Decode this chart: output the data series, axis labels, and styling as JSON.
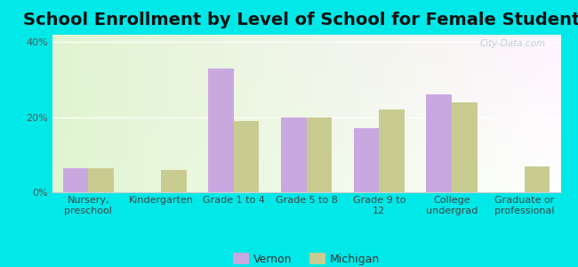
{
  "title": "School Enrollment by Level of School for Female Students",
  "categories": [
    "Nursery,\npreschool",
    "Kindergarten",
    "Grade 1 to 4",
    "Grade 5 to 8",
    "Grade 9 to\n12",
    "College\nundergrad",
    "Graduate or\nprofessional"
  ],
  "vernon": [
    6.5,
    0,
    33,
    20,
    17,
    26,
    0
  ],
  "michigan": [
    6.5,
    6,
    19,
    20,
    22,
    24,
    7
  ],
  "vernon_color": "#c9a8e0",
  "michigan_color": "#c8cc90",
  "ylim": [
    0,
    42
  ],
  "yticks": [
    0,
    20,
    40
  ],
  "ytick_labels": [
    "0%",
    "20%",
    "40%"
  ],
  "legend_labels": [
    "Vernon",
    "Michigan"
  ],
  "title_fontsize": 14,
  "tick_fontsize": 8,
  "bar_width": 0.35,
  "outer_bg": "#00e8e8",
  "watermark_text": "City-Data.com",
  "watermark_color": "#b0c8d0",
  "grid_color": "#ffffff",
  "axis_color": "#aaaaaa"
}
